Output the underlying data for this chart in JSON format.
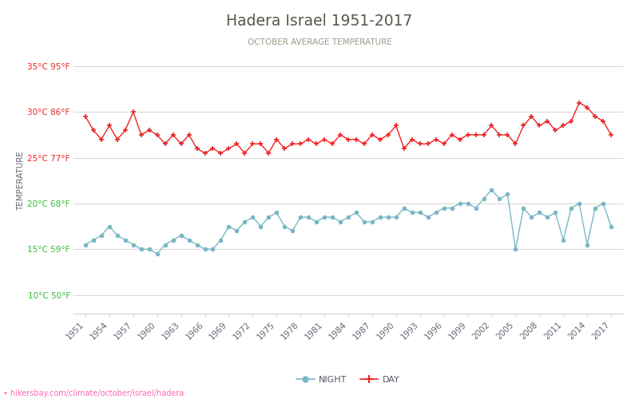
{
  "title": "Hadera Israel 1951-2017",
  "subtitle": "OCTOBER AVERAGE TEMPERATURE",
  "ylabel": "TEMPERATURE",
  "url_text": "hikersbay.com/climate/october/israel/hadera",
  "years": [
    1951,
    1952,
    1953,
    1954,
    1955,
    1956,
    1957,
    1958,
    1959,
    1960,
    1961,
    1962,
    1963,
    1964,
    1965,
    1966,
    1967,
    1968,
    1969,
    1970,
    1971,
    1972,
    1973,
    1974,
    1975,
    1976,
    1977,
    1978,
    1979,
    1980,
    1981,
    1982,
    1983,
    1984,
    1985,
    1986,
    1987,
    1988,
    1989,
    1990,
    1991,
    1992,
    1993,
    1994,
    1995,
    1996,
    1997,
    1998,
    1999,
    2000,
    2001,
    2002,
    2003,
    2004,
    2005,
    2006,
    2007,
    2008,
    2009,
    2010,
    2011,
    2012,
    2013,
    2014,
    2015,
    2016,
    2017
  ],
  "day_temps": [
    29.5,
    28.0,
    27.0,
    28.5,
    27.0,
    28.0,
    30.0,
    27.5,
    28.0,
    27.5,
    26.5,
    27.5,
    26.5,
    27.5,
    26.0,
    25.5,
    26.0,
    25.5,
    26.0,
    26.5,
    25.5,
    26.5,
    26.5,
    25.5,
    27.0,
    26.0,
    26.5,
    26.5,
    27.0,
    26.5,
    27.0,
    26.5,
    27.5,
    27.0,
    27.0,
    26.5,
    27.5,
    27.0,
    27.5,
    28.5,
    26.0,
    27.0,
    26.5,
    26.5,
    27.0,
    26.5,
    27.5,
    27.0,
    27.5,
    27.5,
    27.5,
    28.5,
    27.5,
    27.5,
    26.5,
    28.5,
    29.5,
    28.5,
    29.0,
    28.0,
    28.5,
    29.0,
    31.0,
    30.5,
    29.5,
    29.0,
    27.5
  ],
  "night_temps": [
    15.5,
    16.0,
    16.5,
    17.5,
    16.5,
    16.0,
    15.5,
    15.0,
    15.0,
    14.5,
    15.5,
    16.0,
    16.5,
    16.0,
    15.5,
    15.0,
    15.0,
    16.0,
    17.5,
    17.0,
    18.0,
    18.5,
    17.5,
    18.5,
    19.0,
    17.5,
    17.0,
    18.5,
    18.5,
    18.0,
    18.5,
    18.5,
    18.0,
    18.5,
    19.0,
    18.0,
    18.0,
    18.5,
    18.5,
    18.5,
    19.5,
    19.0,
    19.0,
    18.5,
    19.0,
    19.5,
    19.5,
    20.0,
    20.0,
    19.5,
    20.5,
    21.5,
    20.5,
    21.0,
    15.0,
    19.5,
    18.5,
    19.0,
    18.5,
    19.0,
    16.0,
    19.5,
    20.0,
    15.5,
    19.5,
    20.0,
    17.5
  ],
  "yticks_c": [
    10,
    15,
    20,
    25,
    30,
    35
  ],
  "yticks_f": [
    50,
    59,
    68,
    77,
    86,
    95
  ],
  "ytick_colors_lower": "#33bb33",
  "ytick_colors_upper": "#ee2222",
  "ytick_threshold": 20,
  "ylim": [
    8,
    37
  ],
  "day_color": "#ee2222",
  "night_color": "#7ab8c5",
  "background_color": "#ffffff",
  "grid_color": "#d5d5d5",
  "title_color": "#575748",
  "subtitle_color": "#999988",
  "tick_label_color": "#666677",
  "url_color": "#ff69b4",
  "legend_label_color": "#555566"
}
